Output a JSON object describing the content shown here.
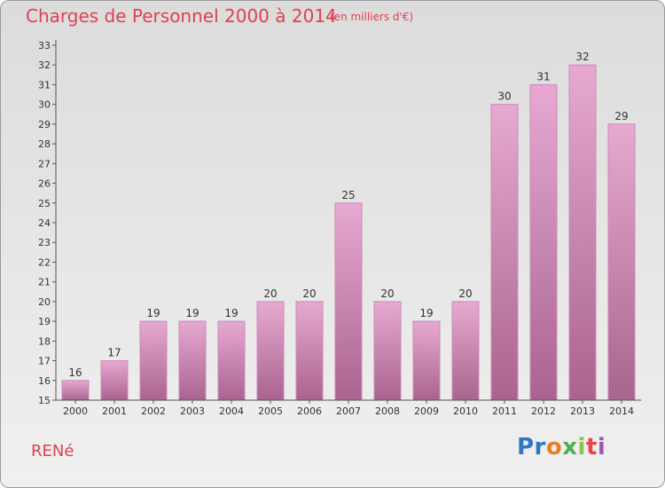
{
  "header": {
    "title": "Charges de Personnel 2000 à 2014",
    "subtitle": "(en milliers d'€)"
  },
  "footer": {
    "commune": "RENé",
    "logo": [
      "Pr",
      "o",
      "x",
      "i",
      "t",
      "i"
    ]
  },
  "colors": {
    "title": "#e04050",
    "bar_light": "#e7a9d1",
    "bar_dark": "#a9648f"
  },
  "chart_data": {
    "type": "bar",
    "categories": [
      "2000",
      "2001",
      "2002",
      "2003",
      "2004",
      "2005",
      "2006",
      "2007",
      "2008",
      "2009",
      "2010",
      "2011",
      "2012",
      "2013",
      "2014"
    ],
    "values": [
      16,
      17,
      19,
      19,
      19,
      20,
      20,
      25,
      20,
      19,
      20,
      30,
      31,
      32,
      29
    ],
    "data_labels": [
      "16",
      "17",
      "19",
      "19",
      "19",
      "20",
      "20",
      "25",
      "20",
      "19",
      "20",
      "30",
      "31",
      "32",
      "29"
    ],
    "yticks": [
      "15",
      "16",
      "17",
      "18",
      "19",
      "20",
      "21",
      "22",
      "23",
      "24",
      "25",
      "26",
      "27",
      "28",
      "29",
      "30",
      "31",
      "32",
      "33"
    ],
    "ylim": [
      15,
      33
    ],
    "grid": false
  }
}
